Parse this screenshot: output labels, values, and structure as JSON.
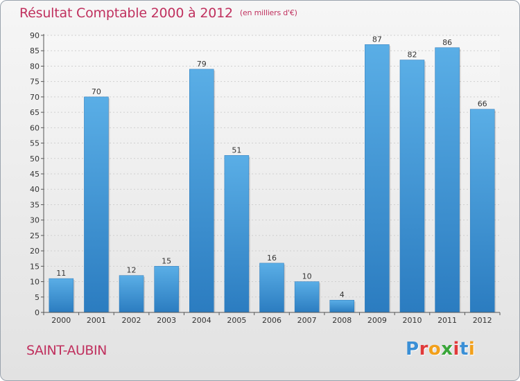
{
  "title": "Résultat Comptable 2000 à 2012",
  "subtitle": "(en milliers d'€)",
  "commune": "SAINT-AUBIN",
  "logo": {
    "letters": [
      "P",
      "r",
      "o",
      "x",
      "i",
      "t",
      "i"
    ],
    "colors": [
      "#3a8fd6",
      "#e03a3a",
      "#f2a01b",
      "#3aa63a",
      "#e03a3a",
      "#3a8fd6",
      "#f2a01b"
    ]
  },
  "colors": {
    "bar_top": "#5aaee6",
    "bar_bottom": "#2b7cc0",
    "title": "#c0305e"
  },
  "chart_data": {
    "type": "bar",
    "title": "Résultat Comptable 2000 à 2012",
    "subtitle": "(en milliers d'€)",
    "categories": [
      "2000",
      "2001",
      "2002",
      "2003",
      "2004",
      "2005",
      "2006",
      "2007",
      "2008",
      "2009",
      "2010",
      "2011",
      "2012"
    ],
    "values": [
      11,
      70,
      12,
      15,
      79,
      51,
      16,
      10,
      4,
      87,
      82,
      86,
      66
    ],
    "ylim": [
      0,
      90
    ],
    "yticks": [
      0,
      5,
      10,
      15,
      20,
      25,
      30,
      35,
      40,
      45,
      50,
      55,
      60,
      65,
      70,
      75,
      80,
      85,
      90
    ],
    "xlabel": "",
    "ylabel": "",
    "grid": true
  }
}
